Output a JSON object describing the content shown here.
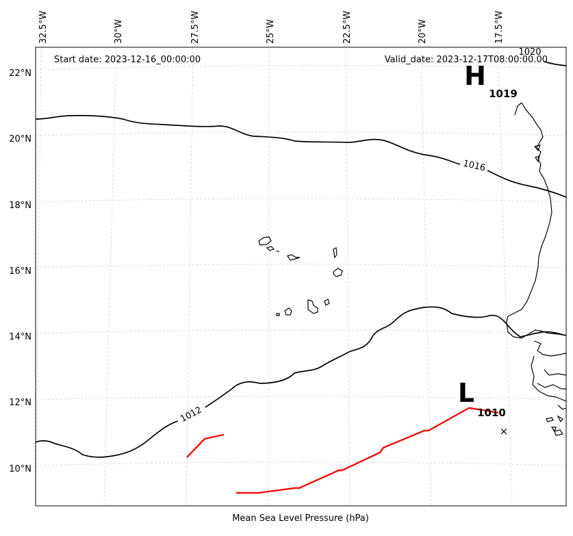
{
  "map": {
    "start_date": "Start date: 2023-12-16_00:00:00",
    "valid_date": "Valid_date: 2023-12-17T08:00:00.00",
    "caption": "Mean Sea Level Pressure (hPa)",
    "lon_labels": [
      "32.5°W",
      "30°W",
      "27.5°W",
      "25°W",
      "22.5°W",
      "20°W",
      "17.5°W"
    ],
    "lat_labels": [
      "22°N",
      "20°N",
      "18°N",
      "16°N",
      "14°N",
      "12°N",
      "10°N"
    ],
    "contours": [
      {
        "label": "1016"
      },
      {
        "label": "1012"
      },
      {
        "label": "1020"
      }
    ],
    "systems": {
      "high": {
        "letter": "H",
        "value": "1019"
      },
      "low": {
        "letter": "L",
        "value": "1010"
      }
    },
    "track": {
      "color": "#ee1111"
    },
    "marker_symbol": "×"
  }
}
